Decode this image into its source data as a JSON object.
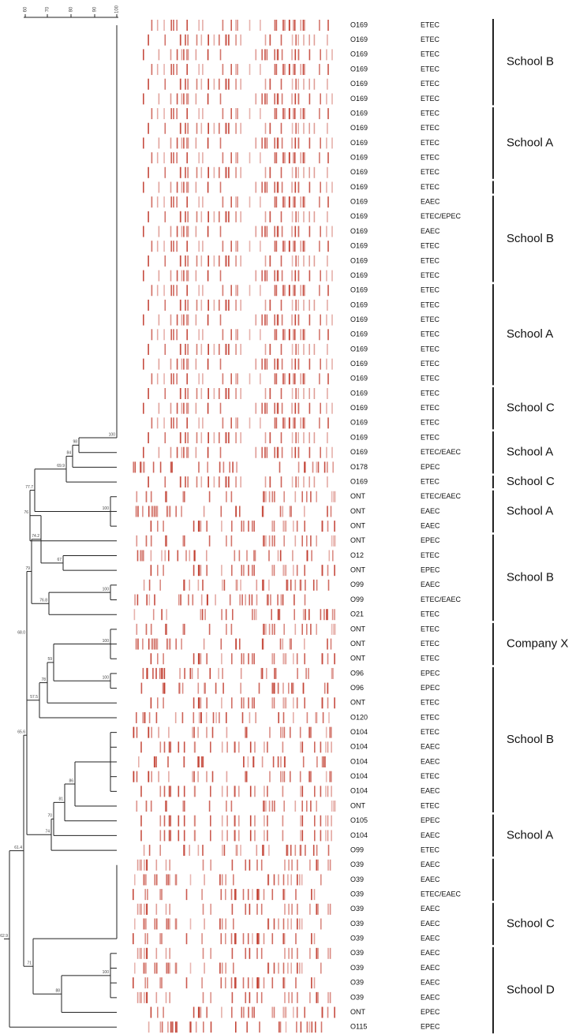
{
  "scale": {
    "ticks": [
      "60",
      "70",
      "80",
      "90",
      "100"
    ]
  },
  "node_labels": [
    "100",
    "98",
    "84",
    "69.9",
    "77.7",
    "76",
    "74.2",
    "67",
    "79",
    "100",
    "76.8",
    "68.0",
    "100",
    "59",
    "100",
    "78",
    "57.5",
    "65.6",
    "100",
    "86",
    "81",
    "70",
    "74",
    "61.4",
    "71",
    "62.9",
    "100",
    "88"
  ],
  "rows": [
    {
      "serotype": "O169",
      "pathotype": "ETEC"
    },
    {
      "serotype": "O169",
      "pathotype": "ETEC"
    },
    {
      "serotype": "O169",
      "pathotype": "ETEC"
    },
    {
      "serotype": "O169",
      "pathotype": "ETEC"
    },
    {
      "serotype": "O169",
      "pathotype": "ETEC"
    },
    {
      "serotype": "O169",
      "pathotype": "ETEC"
    },
    {
      "serotype": "O169",
      "pathotype": "ETEC"
    },
    {
      "serotype": "O169",
      "pathotype": "ETEC"
    },
    {
      "serotype": "O169",
      "pathotype": "ETEC"
    },
    {
      "serotype": "O169",
      "pathotype": "ETEC"
    },
    {
      "serotype": "O169",
      "pathotype": "ETEC"
    },
    {
      "serotype": "O169",
      "pathotype": "ETEC"
    },
    {
      "serotype": "O169",
      "pathotype": "EAEC"
    },
    {
      "serotype": "O169",
      "pathotype": "ETEC/EPEC"
    },
    {
      "serotype": "O169",
      "pathotype": "EAEC"
    },
    {
      "serotype": "O169",
      "pathotype": "ETEC"
    },
    {
      "serotype": "O169",
      "pathotype": "ETEC"
    },
    {
      "serotype": "O169",
      "pathotype": "ETEC"
    },
    {
      "serotype": "O169",
      "pathotype": "ETEC"
    },
    {
      "serotype": "O169",
      "pathotype": "ETEC"
    },
    {
      "serotype": "O169",
      "pathotype": "ETEC"
    },
    {
      "serotype": "O169",
      "pathotype": "ETEC"
    },
    {
      "serotype": "O169",
      "pathotype": "ETEC"
    },
    {
      "serotype": "O169",
      "pathotype": "ETEC"
    },
    {
      "serotype": "O169",
      "pathotype": "ETEC"
    },
    {
      "serotype": "O169",
      "pathotype": "ETEC"
    },
    {
      "serotype": "O169",
      "pathotype": "ETEC"
    },
    {
      "serotype": "O169",
      "pathotype": "ETEC"
    },
    {
      "serotype": "O169",
      "pathotype": "ETEC"
    },
    {
      "serotype": "O169",
      "pathotype": "ETEC/EAEC"
    },
    {
      "serotype": "O178",
      "pathotype": "EPEC"
    },
    {
      "serotype": "O169",
      "pathotype": "ETEC"
    },
    {
      "serotype": "ONT",
      "pathotype": "ETEC/EAEC"
    },
    {
      "serotype": "ONT",
      "pathotype": "EAEC"
    },
    {
      "serotype": "ONT",
      "pathotype": "EAEC"
    },
    {
      "serotype": "ONT",
      "pathotype": "EPEC"
    },
    {
      "serotype": "O12",
      "pathotype": "ETEC"
    },
    {
      "serotype": "ONT",
      "pathotype": "EPEC"
    },
    {
      "serotype": "O99",
      "pathotype": "EAEC"
    },
    {
      "serotype": "O99",
      "pathotype": "ETEC/EAEC"
    },
    {
      "serotype": "O21",
      "pathotype": "ETEC"
    },
    {
      "serotype": "ONT",
      "pathotype": "ETEC"
    },
    {
      "serotype": "ONT",
      "pathotype": "ETEC"
    },
    {
      "serotype": "ONT",
      "pathotype": "ETEC"
    },
    {
      "serotype": "O96",
      "pathotype": "EPEC"
    },
    {
      "serotype": "O96",
      "pathotype": "EPEC"
    },
    {
      "serotype": "ONT",
      "pathotype": "ETEC"
    },
    {
      "serotype": "O120",
      "pathotype": "ETEC"
    },
    {
      "serotype": "O104",
      "pathotype": "ETEC"
    },
    {
      "serotype": "O104",
      "pathotype": "EAEC"
    },
    {
      "serotype": "O104",
      "pathotype": "EAEC"
    },
    {
      "serotype": "O104",
      "pathotype": "ETEC"
    },
    {
      "serotype": "O104",
      "pathotype": "EAEC"
    },
    {
      "serotype": "ONT",
      "pathotype": "ETEC"
    },
    {
      "serotype": "O105",
      "pathotype": "EPEC"
    },
    {
      "serotype": "O104",
      "pathotype": "EAEC"
    },
    {
      "serotype": "O99",
      "pathotype": "ETEC"
    },
    {
      "serotype": "O39",
      "pathotype": "EAEC"
    },
    {
      "serotype": "O39",
      "pathotype": "EAEC"
    },
    {
      "serotype": "O39",
      "pathotype": "ETEC/EAEC"
    },
    {
      "serotype": "O39",
      "pathotype": "EAEC"
    },
    {
      "serotype": "O39",
      "pathotype": "EAEC"
    },
    {
      "serotype": "O39",
      "pathotype": "EAEC"
    },
    {
      "serotype": "O39",
      "pathotype": "EAEC"
    },
    {
      "serotype": "O39",
      "pathotype": "EAEC"
    },
    {
      "serotype": "O39",
      "pathotype": "EAEC"
    },
    {
      "serotype": "O39",
      "pathotype": "EAEC"
    },
    {
      "serotype": "ONT",
      "pathotype": "EPEC"
    },
    {
      "serotype": "O115",
      "pathotype": "EPEC"
    }
  ],
  "groups": [
    "School B",
    "School A",
    "School B",
    "School A",
    "School C",
    "School A",
    "School C",
    "School A",
    "School B",
    "Company X",
    "School B",
    "School A",
    "School C",
    "School D"
  ]
}
